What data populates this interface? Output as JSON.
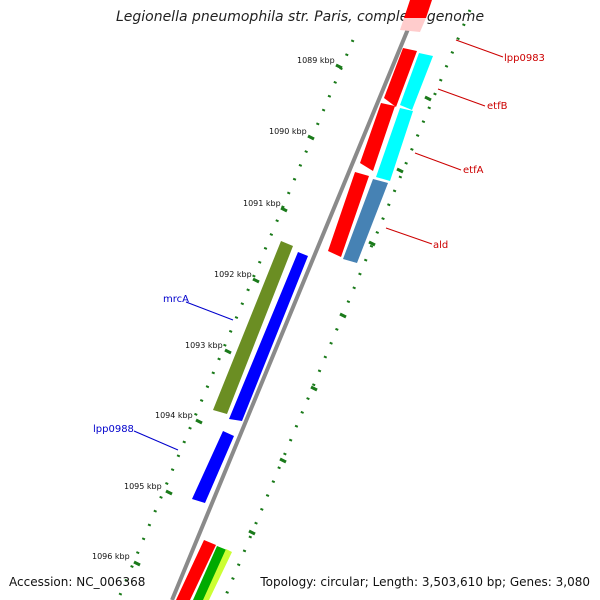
{
  "title": "Legionella pneumophila str. Paris, complete genome",
  "accession": "Accession: NC_006368",
  "summary": "Topology: circular; Length: 3,503,610 bp; Genes: 3,080",
  "ticks": [
    {
      "label": "1089 kbp",
      "kbp": 1089
    },
    {
      "label": "1090 kbp",
      "kbp": 1090
    },
    {
      "label": "1091 kbp",
      "kbp": 1091
    },
    {
      "label": "1092 kbp",
      "kbp": 1092
    },
    {
      "label": "1093 kbp",
      "kbp": 1093
    },
    {
      "label": "1094 kbp",
      "kbp": 1094
    },
    {
      "label": "1095 kbp",
      "kbp": 1095
    },
    {
      "label": "1096 kbp",
      "kbp": 1096
    }
  ],
  "genes": [
    {
      "label": "lpp0983",
      "strand": "forward",
      "color": "#cc0000"
    },
    {
      "label": "etfB",
      "strand": "forward",
      "color": "#cc0000"
    },
    {
      "label": "etfA",
      "strand": "forward",
      "color": "#cc0000"
    },
    {
      "label": "ald",
      "strand": "forward",
      "color": "#cc0000"
    },
    {
      "label": "mrcA",
      "strand": "reverse",
      "color": "#0000cc"
    },
    {
      "label": "lpp0988",
      "strand": "reverse",
      "color": "#0000cc"
    }
  ],
  "colors": {
    "backbone": "#8a8a8a",
    "cds": "#ff0000",
    "etf": "#00ffff",
    "ald_feature": "#4682b4",
    "mrcA_feature": "#6b8e23",
    "reverse_cds": "#0000ff",
    "forward_label": "#cc0000",
    "reverse_label": "#0000cc",
    "tick": "#1a7a1a",
    "green_feature": "#00aa00",
    "yellow_feature": "#ccff33"
  }
}
